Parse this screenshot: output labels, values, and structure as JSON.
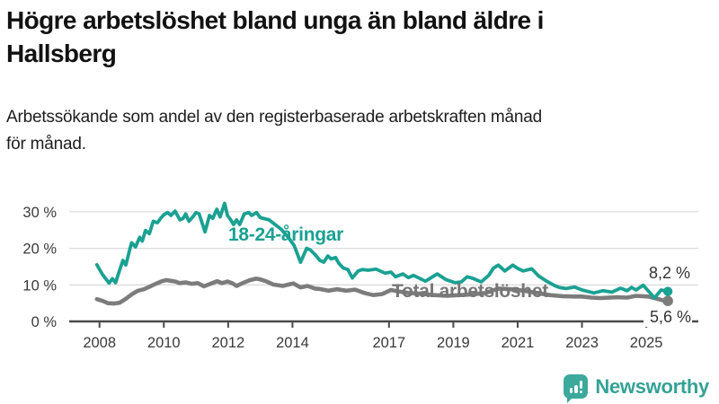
{
  "header": {
    "title_lines": [
      "Högre arbetslöshet bland unga än bland äldre i",
      "Hallsberg"
    ],
    "subtitle_lines": [
      "Arbetssökande som andel av den registerbaserade arbetskraften månad",
      "för månad."
    ]
  },
  "chart_data": {
    "type": "line",
    "title": "Högre arbetslöshet bland unga än bland äldre i Hallsberg",
    "subtitle": "Arbetssökande som andel av den registerbaserade arbetskraften månad för månad.",
    "unit": "%",
    "grid": "horizontal-only",
    "x_axis": {
      "range": [
        2007.9,
        2025.8
      ],
      "ticks": [
        "2008",
        "2010",
        "2012",
        "2014",
        "2017",
        "2019",
        "2021",
        "2023",
        "2025"
      ],
      "tick_years": [
        2008,
        2010,
        2012,
        2014,
        2017,
        2019,
        2021,
        2023,
        2025
      ]
    },
    "y_axis": {
      "range": [
        0,
        34
      ],
      "ticks": [
        {
          "value": 0,
          "label": "0 %"
        },
        {
          "value": 10,
          "label": "10 %"
        },
        {
          "value": 20,
          "label": "20 %"
        },
        {
          "value": 30,
          "label": "30 %"
        }
      ]
    },
    "style": {
      "grid_color": "#dcdcdc",
      "axis_color": "#4a4a4a",
      "tick_text_color": "#3a3a3a"
    },
    "series": [
      {
        "name": "18-24-åringar",
        "color": "#1aa192",
        "label_color": "#1aa192",
        "end_value": 8.2,
        "end_label": "8,2 %",
        "points": [
          [
            2007.92,
            15.5
          ],
          [
            2008.08,
            13.0
          ],
          [
            2008.2,
            11.6
          ],
          [
            2008.3,
            10.5
          ],
          [
            2008.4,
            11.7
          ],
          [
            2008.5,
            10.6
          ],
          [
            2008.62,
            13.9
          ],
          [
            2008.73,
            16.7
          ],
          [
            2008.82,
            15.4
          ],
          [
            2008.95,
            20.0
          ],
          [
            2009.0,
            21.5
          ],
          [
            2009.12,
            20.4
          ],
          [
            2009.25,
            23.0
          ],
          [
            2009.33,
            22.0
          ],
          [
            2009.43,
            24.9
          ],
          [
            2009.55,
            24.0
          ],
          [
            2009.67,
            27.4
          ],
          [
            2009.8,
            27.0
          ],
          [
            2009.9,
            28.2
          ],
          [
            2010.0,
            29.2
          ],
          [
            2010.12,
            29.8
          ],
          [
            2010.22,
            29.0
          ],
          [
            2010.35,
            30.2
          ],
          [
            2010.5,
            27.8
          ],
          [
            2010.6,
            28.2
          ],
          [
            2010.68,
            29.4
          ],
          [
            2010.78,
            27.4
          ],
          [
            2010.9,
            28.6
          ],
          [
            2011.0,
            29.8
          ],
          [
            2011.1,
            29.4
          ],
          [
            2011.28,
            24.5
          ],
          [
            2011.42,
            29.0
          ],
          [
            2011.52,
            28.2
          ],
          [
            2011.65,
            30.7
          ],
          [
            2011.75,
            28.6
          ],
          [
            2011.89,
            32.3
          ],
          [
            2011.98,
            29.0
          ],
          [
            2012.08,
            27.8
          ],
          [
            2012.17,
            26.5
          ],
          [
            2012.26,
            27.8
          ],
          [
            2012.36,
            26.5
          ],
          [
            2012.5,
            29.4
          ],
          [
            2012.64,
            29.8
          ],
          [
            2012.73,
            29.0
          ],
          [
            2012.88,
            29.8
          ],
          [
            2013.0,
            28.4
          ],
          [
            2013.27,
            27.8
          ],
          [
            2013.46,
            26.5
          ],
          [
            2013.65,
            25.2
          ],
          [
            2013.85,
            23.2
          ],
          [
            2014.05,
            20.8
          ],
          [
            2014.25,
            16.2
          ],
          [
            2014.44,
            20.0
          ],
          [
            2014.55,
            19.6
          ],
          [
            2014.7,
            18.3
          ],
          [
            2014.85,
            16.7
          ],
          [
            2014.97,
            16.2
          ],
          [
            2015.1,
            17.9
          ],
          [
            2015.2,
            17.1
          ],
          [
            2015.34,
            17.5
          ],
          [
            2015.44,
            15.9
          ],
          [
            2015.58,
            14.6
          ],
          [
            2015.72,
            14.2
          ],
          [
            2015.86,
            11.9
          ],
          [
            2016.04,
            13.8
          ],
          [
            2016.18,
            14.2
          ],
          [
            2016.35,
            14.0
          ],
          [
            2016.6,
            14.3
          ],
          [
            2016.88,
            13.2
          ],
          [
            2017.06,
            13.5
          ],
          [
            2017.2,
            12.2
          ],
          [
            2017.43,
            13.0
          ],
          [
            2017.6,
            12.0
          ],
          [
            2017.76,
            12.6
          ],
          [
            2018.13,
            11.0
          ],
          [
            2018.5,
            13.0
          ],
          [
            2018.78,
            11.4
          ],
          [
            2019.06,
            10.6
          ],
          [
            2019.25,
            10.8
          ],
          [
            2019.43,
            12.2
          ],
          [
            2019.6,
            11.8
          ],
          [
            2019.87,
            10.8
          ],
          [
            2020.1,
            12.6
          ],
          [
            2020.25,
            14.6
          ],
          [
            2020.4,
            15.4
          ],
          [
            2020.6,
            13.8
          ],
          [
            2020.85,
            15.4
          ],
          [
            2021.0,
            14.5
          ],
          [
            2021.17,
            13.8
          ],
          [
            2021.44,
            14.4
          ],
          [
            2021.64,
            12.5
          ],
          [
            2021.92,
            10.9
          ],
          [
            2022.15,
            9.8
          ],
          [
            2022.29,
            9.3
          ],
          [
            2022.5,
            9.0
          ],
          [
            2022.77,
            9.4
          ],
          [
            2023.0,
            8.6
          ],
          [
            2023.37,
            7.8
          ],
          [
            2023.65,
            8.4
          ],
          [
            2023.93,
            8.0
          ],
          [
            2024.2,
            9.1
          ],
          [
            2024.4,
            8.4
          ],
          [
            2024.54,
            9.3
          ],
          [
            2024.68,
            8.6
          ],
          [
            2024.9,
            9.9
          ],
          [
            2025.14,
            7.6
          ],
          [
            2025.25,
            6.4
          ],
          [
            2025.46,
            8.6
          ],
          [
            2025.67,
            8.2
          ]
        ]
      },
      {
        "name": "Total arbetslöshet",
        "color": "#7c7c7c",
        "label_color": "#767676",
        "end_value": 5.6,
        "end_label": "5,6 %",
        "points": [
          [
            2007.92,
            6.1
          ],
          [
            2008.1,
            5.6
          ],
          [
            2008.26,
            5.0
          ],
          [
            2008.45,
            4.9
          ],
          [
            2008.63,
            5.1
          ],
          [
            2008.82,
            6.2
          ],
          [
            2009.0,
            7.4
          ],
          [
            2009.2,
            8.4
          ],
          [
            2009.38,
            8.8
          ],
          [
            2009.56,
            9.5
          ],
          [
            2009.75,
            10.3
          ],
          [
            2009.94,
            11.0
          ],
          [
            2010.08,
            11.3
          ],
          [
            2010.22,
            11.1
          ],
          [
            2010.36,
            10.9
          ],
          [
            2010.49,
            10.5
          ],
          [
            2010.68,
            10.7
          ],
          [
            2010.86,
            10.3
          ],
          [
            2011.05,
            10.5
          ],
          [
            2011.25,
            9.6
          ],
          [
            2011.42,
            10.2
          ],
          [
            2011.66,
            11.0
          ],
          [
            2011.8,
            10.5
          ],
          [
            2011.98,
            10.9
          ],
          [
            2012.12,
            10.5
          ],
          [
            2012.26,
            9.7
          ],
          [
            2012.45,
            10.5
          ],
          [
            2012.68,
            11.3
          ],
          [
            2012.87,
            11.7
          ],
          [
            2013.0,
            11.5
          ],
          [
            2013.2,
            10.9
          ],
          [
            2013.4,
            10.1
          ],
          [
            2013.7,
            9.7
          ],
          [
            2013.88,
            10.1
          ],
          [
            2014.03,
            10.4
          ],
          [
            2014.25,
            9.3
          ],
          [
            2014.47,
            9.7
          ],
          [
            2014.7,
            9.0
          ],
          [
            2014.83,
            8.9
          ],
          [
            2015.11,
            8.4
          ],
          [
            2015.39,
            8.8
          ],
          [
            2015.67,
            8.4
          ],
          [
            2015.95,
            8.7
          ],
          [
            2016.23,
            7.8
          ],
          [
            2016.51,
            7.2
          ],
          [
            2016.79,
            7.5
          ],
          [
            2017.06,
            8.6
          ],
          [
            2017.3,
            8.2
          ],
          [
            2017.6,
            7.8
          ],
          [
            2018.0,
            7.6
          ],
          [
            2018.4,
            7.2
          ],
          [
            2018.8,
            7.0
          ],
          [
            2019.2,
            7.2
          ],
          [
            2019.6,
            7.4
          ],
          [
            2020.0,
            7.8
          ],
          [
            2020.4,
            9.0
          ],
          [
            2020.8,
            8.8
          ],
          [
            2021.2,
            8.4
          ],
          [
            2021.6,
            7.8
          ],
          [
            2022.0,
            7.2
          ],
          [
            2022.4,
            6.9
          ],
          [
            2022.77,
            6.8
          ],
          [
            2023.0,
            6.8
          ],
          [
            2023.3,
            6.5
          ],
          [
            2023.56,
            6.4
          ],
          [
            2024.1,
            6.6
          ],
          [
            2024.4,
            6.5
          ],
          [
            2024.68,
            7.0
          ],
          [
            2025.05,
            6.8
          ],
          [
            2025.3,
            6.3
          ],
          [
            2025.5,
            5.8
          ],
          [
            2025.67,
            5.6
          ]
        ]
      }
    ],
    "legend_position": "inline-labels"
  },
  "branding": {
    "logo_text": "Newsworthy",
    "logo_color": "#3ba99c",
    "logo_text_color": "#35a296",
    "logo_glyph": "bar-chart-exclamation-bubble"
  }
}
